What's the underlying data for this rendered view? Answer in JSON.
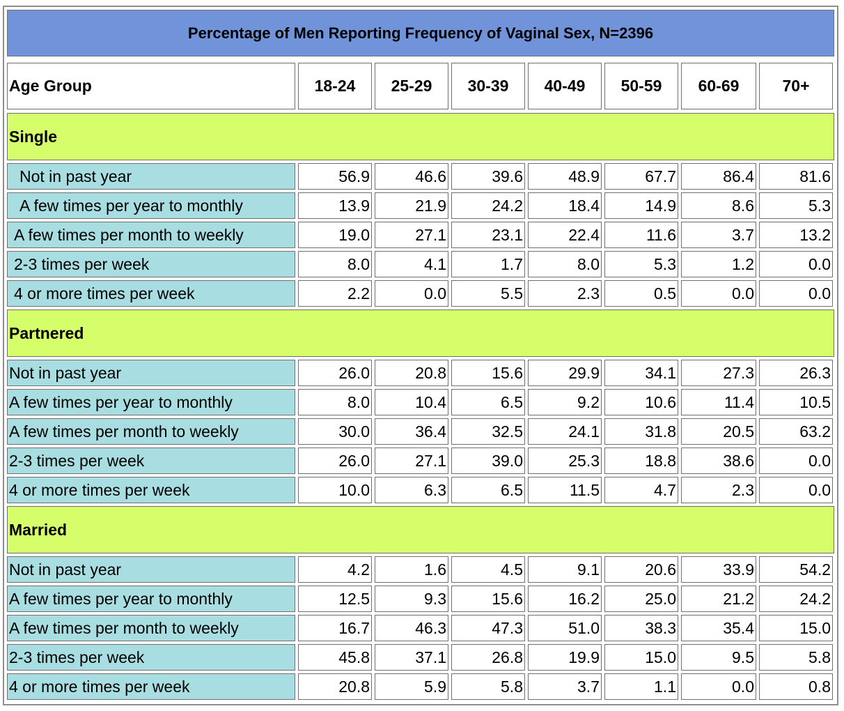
{
  "colors": {
    "title_bg": "#7193d9",
    "section_bg": "#d6fd6a",
    "row_label_bg": "#a8dde1",
    "value_bg": "#ffffff",
    "border": "#6f6f6f"
  },
  "chart_data": {
    "type": "table",
    "title": "Percentage of Men Reporting Frequency of Vaginal Sex, N=2396",
    "header_label": "Age Group",
    "age_groups": [
      "18-24",
      "25-29",
      "30-39",
      "40-49",
      "50-59",
      "60-69",
      "70+"
    ],
    "sections": [
      {
        "name": "Single",
        "rows": [
          {
            "label": "Not in past year",
            "values": [
              "56.9",
              "46.6",
              "39.6",
              "48.9",
              "67.7",
              "86.4",
              "81.6"
            ]
          },
          {
            "label": "A few times per year to monthly",
            "values": [
              "13.9",
              "21.9",
              "24.2",
              "18.4",
              "14.9",
              "8.6",
              "5.3"
            ]
          },
          {
            "label": "A few times per month to weekly",
            "values": [
              "19.0",
              "27.1",
              "23.1",
              "22.4",
              "11.6",
              "3.7",
              "13.2"
            ]
          },
          {
            "label": "2-3 times per week",
            "values": [
              "8.0",
              "4.1",
              "1.7",
              "8.0",
              "5.3",
              "1.2",
              "0.0"
            ]
          },
          {
            "label": "4 or more times per week",
            "values": [
              "2.2",
              "0.0",
              "5.5",
              "2.3",
              "0.5",
              "0.0",
              "0.0"
            ]
          }
        ]
      },
      {
        "name": "Partnered",
        "rows": [
          {
            "label": "Not in past year",
            "values": [
              "26.0",
              "20.8",
              "15.6",
              "29.9",
              "34.1",
              "27.3",
              "26.3"
            ]
          },
          {
            "label": "A few times per year to monthly",
            "values": [
              "8.0",
              "10.4",
              "6.5",
              "9.2",
              "10.6",
              "11.4",
              "10.5"
            ]
          },
          {
            "label": "A few times per month to weekly",
            "values": [
              "30.0",
              "36.4",
              "32.5",
              "24.1",
              "31.8",
              "20.5",
              "63.2"
            ]
          },
          {
            "label": "2-3 times per week",
            "values": [
              "26.0",
              "27.1",
              "39.0",
              "25.3",
              "18.8",
              "38.6",
              "0.0"
            ]
          },
          {
            "label": "4 or more times per week",
            "values": [
              "10.0",
              "6.3",
              "6.5",
              "11.5",
              "4.7",
              "2.3",
              "0.0"
            ]
          }
        ]
      },
      {
        "name": "Married",
        "rows": [
          {
            "label": "Not in past year",
            "values": [
              "4.2",
              "1.6",
              "4.5",
              "9.1",
              "20.6",
              "33.9",
              "54.2"
            ]
          },
          {
            "label": "A few times per year to monthly",
            "values": [
              "12.5",
              "9.3",
              "15.6",
              "16.2",
              "25.0",
              "21.2",
              "24.2"
            ]
          },
          {
            "label": "A few times per month to weekly",
            "values": [
              "16.7",
              "46.3",
              "47.3",
              "51.0",
              "38.3",
              "35.4",
              "15.0"
            ]
          },
          {
            "label": "2-3 times per week",
            "values": [
              "45.8",
              "37.1",
              "26.8",
              "19.9",
              "15.0",
              "9.5",
              "5.8"
            ]
          },
          {
            "label": "4 or more times per week",
            "values": [
              "20.8",
              "5.9",
              "5.8",
              "3.7",
              "1.1",
              "0.0",
              "0.8"
            ]
          }
        ]
      }
    ]
  }
}
